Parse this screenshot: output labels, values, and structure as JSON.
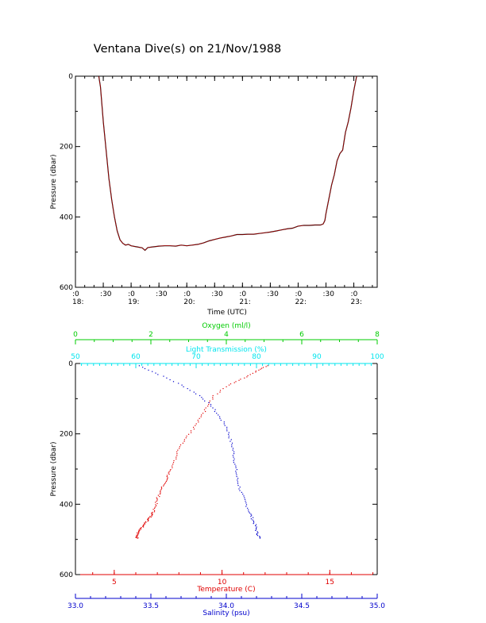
{
  "title": "Ventana Dive(s) on 21/Nov/1988",
  "colors": {
    "axis": "#000000",
    "oxygen": "#00cc00",
    "light": "#00e5ee",
    "temperature": "#e00000",
    "salinity": "#0000cc",
    "depth_trace": "#000000",
    "depth_trace_overlay": "#d00000"
  },
  "chart_data": [
    {
      "type": "line",
      "name": "depth-vs-time",
      "xlabel": "Time (UTC)",
      "ylabel": "Pressure (dbar)",
      "xlim_hours": [
        18,
        23.42
      ],
      "ylim": [
        600,
        0
      ],
      "yticks": [
        "0",
        "200",
        "400",
        "600"
      ],
      "xticks": [
        {
          "h": 18.0,
          "top": ":0",
          "bottom": "18:"
        },
        {
          "h": 18.5,
          "top": ":30",
          "bottom": ""
        },
        {
          "h": 19.0,
          "top": ":0",
          "bottom": "19:"
        },
        {
          "h": 19.5,
          "top": ":30",
          "bottom": ""
        },
        {
          "h": 20.0,
          "top": ":0",
          "bottom": "20:"
        },
        {
          "h": 20.5,
          "top": ":30",
          "bottom": ""
        },
        {
          "h": 21.0,
          "top": ":0",
          "bottom": "21:"
        },
        {
          "h": 21.5,
          "top": ":30",
          "bottom": ""
        },
        {
          "h": 22.0,
          "top": ":0",
          "bottom": "22:"
        },
        {
          "h": 22.5,
          "top": ":30",
          "bottom": ""
        },
        {
          "h": 23.0,
          "top": ":0",
          "bottom": "23:"
        }
      ],
      "series": [
        {
          "x_hours": [
            18.42,
            18.45,
            18.5,
            18.55,
            18.6,
            18.65,
            18.7,
            18.75,
            18.8,
            18.85,
            18.9,
            18.95,
            19.0,
            19.1,
            19.2,
            19.25,
            19.3,
            19.4,
            19.5,
            19.6,
            19.7,
            19.8,
            19.9,
            20.0,
            20.1,
            20.2,
            20.3,
            20.4,
            20.5,
            20.6,
            20.7,
            20.8,
            20.9,
            21.0,
            21.1,
            21.2,
            21.3,
            21.4,
            21.5,
            21.6,
            21.7,
            21.8,
            21.9,
            22.0,
            22.1,
            22.2,
            22.3,
            22.4,
            22.45,
            22.48,
            22.5,
            22.55,
            22.6,
            22.65,
            22.7,
            22.75,
            22.8,
            22.85,
            22.9,
            22.95,
            23.0,
            23.05
          ],
          "y": [
            0,
            30,
            130,
            210,
            290,
            350,
            400,
            440,
            465,
            475,
            480,
            478,
            482,
            485,
            488,
            495,
            487,
            485,
            483,
            482,
            482,
            483,
            480,
            482,
            480,
            478,
            474,
            468,
            464,
            460,
            457,
            454,
            450,
            450,
            449,
            449,
            447,
            445,
            443,
            440,
            437,
            434,
            432,
            426,
            424,
            424,
            423,
            423,
            420,
            410,
            390,
            350,
            310,
            280,
            240,
            220,
            210,
            160,
            130,
            90,
            40,
            0
          ]
        }
      ]
    },
    {
      "type": "scatter",
      "name": "profiles-vs-pressure",
      "ylabel": "Pressure (dbar)",
      "ylim": [
        600,
        0
      ],
      "yticks": [
        "0",
        "200",
        "400",
        "600"
      ],
      "axes": {
        "oxygen": {
          "label": "Oxygen (ml/l)",
          "range": [
            0,
            8
          ],
          "ticks": [
            "0",
            "2",
            "4",
            "6",
            "8"
          ]
        },
        "light": {
          "label": "Light Transmission (%)",
          "range": [
            50,
            100
          ],
          "ticks": [
            "50",
            "60",
            "70",
            "80",
            "90",
            "100"
          ]
        },
        "temperature": {
          "label": "Temperature (C)",
          "range": [
            3.2,
            17.2
          ],
          "ticks": [
            "5",
            "10",
            "15"
          ]
        },
        "salinity": {
          "label": "Salinity (psu)",
          "range": [
            33.0,
            35.0
          ],
          "ticks": [
            "33.0",
            "33.5",
            "34.0",
            "34.5",
            "35.0"
          ]
        }
      },
      "series": [
        {
          "name": "Temperature (C)",
          "axis": "temperature",
          "x": [
            12.1,
            11.6,
            11.0,
            10.3,
            9.6,
            9.3,
            9.0,
            8.7,
            8.3,
            8.0,
            7.8,
            7.6,
            7.45,
            7.3,
            7.15,
            7.0,
            6.9,
            6.8,
            6.7,
            6.6,
            6.45,
            6.35,
            6.2,
            6.1,
            6.0,
            6.05
          ],
          "y": [
            5,
            20,
            40,
            60,
            90,
            120,
            150,
            180,
            210,
            240,
            270,
            300,
            320,
            340,
            360,
            380,
            400,
            420,
            430,
            440,
            450,
            460,
            470,
            480,
            490,
            495
          ]
        },
        {
          "name": "Salinity (psu)",
          "axis": "salinity",
          "x": [
            33.42,
            33.55,
            33.7,
            33.82,
            33.9,
            33.95,
            34.0,
            34.02,
            34.04,
            34.05,
            34.06,
            34.07,
            34.09,
            34.12,
            34.15,
            34.17,
            34.19,
            34.2,
            34.22
          ],
          "y": [
            5,
            30,
            60,
            90,
            120,
            150,
            180,
            210,
            240,
            270,
            300,
            330,
            360,
            390,
            420,
            440,
            460,
            480,
            495
          ]
        }
      ]
    }
  ]
}
